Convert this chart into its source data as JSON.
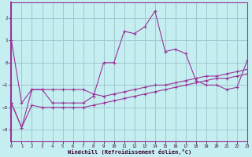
{
  "bg_color": "#c5eef0",
  "grid_color": "#a0c8d0",
  "line_color": "#993399",
  "border_color": "#993399",
  "xlabel": "Windchill (Refroidissement éolien,°C)",
  "xlim": [
    0,
    23
  ],
  "ylim": [
    -3.5,
    2.7
  ],
  "xticks": [
    0,
    1,
    2,
    3,
    4,
    5,
    6,
    7,
    8,
    9,
    10,
    11,
    12,
    13,
    14,
    15,
    16,
    17,
    18,
    19,
    20,
    21,
    22,
    23
  ],
  "yticks": [
    -3,
    -2,
    -1,
    0,
    1,
    2
  ],
  "line1_x": [
    0,
    1,
    2,
    3,
    4,
    5,
    6,
    7,
    8,
    9,
    10,
    11,
    12,
    13,
    14,
    15,
    16,
    17,
    18,
    19,
    20,
    21,
    22,
    23
  ],
  "line1_y": [
    1.0,
    -1.8,
    -1.2,
    -1.2,
    -1.8,
    -1.8,
    -1.8,
    -1.8,
    -1.5,
    0.0,
    0.0,
    1.4,
    1.3,
    1.6,
    2.3,
    0.5,
    0.6,
    0.4,
    -0.8,
    -1.0,
    -1.0,
    -1.2,
    -1.1,
    0.1
  ],
  "line2_x": [
    0,
    1,
    2,
    3,
    4,
    5,
    6,
    7,
    8,
    9,
    10,
    11,
    12,
    13,
    14,
    15,
    16,
    17,
    18,
    19,
    20,
    21,
    22,
    23
  ],
  "line2_y": [
    -1.8,
    -2.9,
    -1.2,
    -1.2,
    -1.2,
    -1.2,
    -1.2,
    -1.2,
    -1.4,
    -1.5,
    -1.4,
    -1.3,
    -1.2,
    -1.1,
    -1.0,
    -1.0,
    -0.9,
    -0.8,
    -0.7,
    -0.6,
    -0.6,
    -0.5,
    -0.4,
    -0.3
  ],
  "line3_x": [
    0,
    1,
    2,
    3,
    4,
    5,
    6,
    7,
    8,
    9,
    10,
    11,
    12,
    13,
    14,
    15,
    16,
    17,
    18,
    19,
    20,
    21,
    22,
    23
  ],
  "line3_y": [
    -1.8,
    -2.9,
    -1.9,
    -2.0,
    -2.0,
    -2.0,
    -2.0,
    -2.0,
    -1.9,
    -1.8,
    -1.7,
    -1.6,
    -1.5,
    -1.4,
    -1.3,
    -1.2,
    -1.1,
    -1.0,
    -0.9,
    -0.8,
    -0.7,
    -0.7,
    -0.6,
    -0.5
  ]
}
